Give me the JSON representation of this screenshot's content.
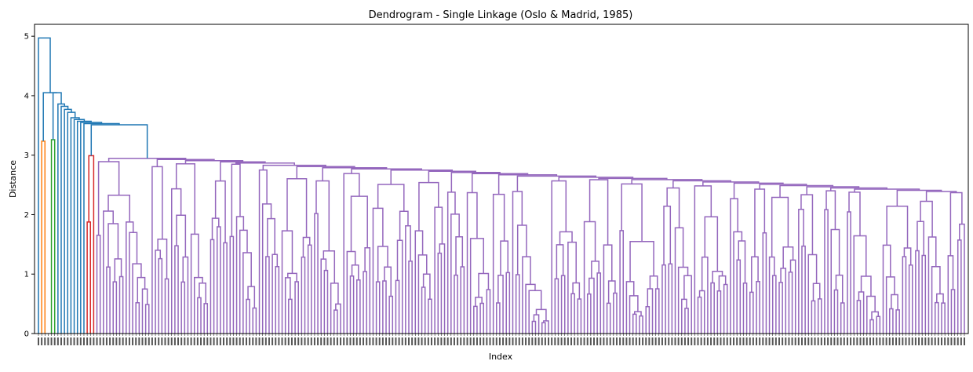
{
  "chart_data": {
    "type": "dendrogram",
    "title": "Dendrogram - Single Linkage (Oslo & Madrid, 1985)",
    "xlabel": "Index",
    "ylabel": "Distance",
    "ylim": [
      0,
      5.2
    ],
    "yticks": [
      0,
      1,
      2,
      3,
      4,
      5
    ],
    "grid": false,
    "leaf_count": 286,
    "root_distance": 4.97,
    "outlier_merge_heights": [
      4.05,
      3.86,
      3.82,
      3.77,
      3.72,
      3.63,
      3.6,
      3.57,
      3.55,
      3.53,
      3.51
    ],
    "colored_clusters": [
      {
        "color": "#ff7f0e",
        "merge_height": 3.35,
        "leaves": 2
      },
      {
        "color": "#2ca02c",
        "merge_height": 3.36,
        "leaves": 2
      },
      {
        "color": "#d62728",
        "merge_height": 3.2,
        "leaves": 3
      },
      {
        "color": "#9467bd",
        "merge_height": 3.3,
        "leaves": 255
      }
    ],
    "above_threshold_color": "#1f77b4",
    "purple_cluster_backbone_heights": [
      3.3,
      3.25,
      3.22,
      3.15,
      3.12,
      3.1,
      3.08,
      3.05,
      3.02,
      2.97,
      2.95,
      2.93,
      2.92,
      2.9,
      2.89,
      2.87,
      2.85,
      2.83,
      2.82,
      2.8,
      2.78,
      2.76,
      2.74,
      2.72,
      2.7,
      2.68,
      2.66,
      2.64,
      2.62
    ]
  }
}
